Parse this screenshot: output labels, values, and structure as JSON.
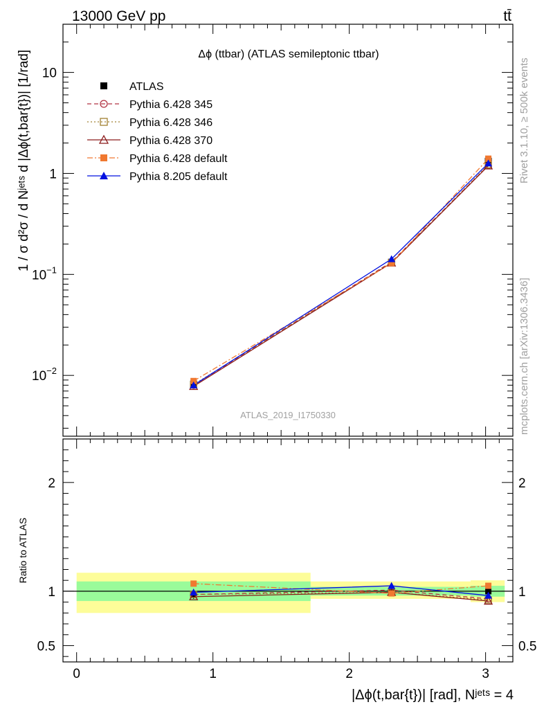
{
  "header": {
    "energy_label": "13000 GeV pp",
    "process_label": "tt̄"
  },
  "side_labels": {
    "rivet": "Rivet 3.1.10, ≥ 500k events",
    "mcplots": "mcplots.cern.ch [arXiv:1306.3436]"
  },
  "chart_data": [
    {
      "type": "line",
      "panel": "main",
      "title": "Δϕ (ttbar) (ATLAS semileptonic ttbar)",
      "analysis_label": "ATLAS_2019_I1750330",
      "ylabel": "1 / σ d²σ / d Nʲᵉᵗˢ d |Δϕ(t,bar{t})| [1/rad]",
      "yscale": "log",
      "xlim": [
        -0.1,
        3.2
      ],
      "ylim": [
        0.0025,
        30
      ],
      "ytick_labels": [
        {
          "value": 0.01,
          "base": "10",
          "exp": "−2"
        },
        {
          "value": 0.1,
          "base": "10",
          "exp": "−1"
        },
        {
          "value": 1,
          "base": "1",
          "exp": ""
        },
        {
          "value": 10,
          "base": "10",
          "exp": ""
        }
      ],
      "legend_position": "top-left",
      "x": [
        0.858,
        2.31,
        3.02
      ],
      "series": [
        {
          "name": "ATLAS",
          "color": "#000000",
          "values": [
            0.0082,
            0.132,
            1.32
          ],
          "errors": [
            0.0003,
            0.003,
            0.03
          ],
          "marker": "filled-square",
          "line": "none"
        },
        {
          "name": "Pythia 6.428 345",
          "color": "#b03040",
          "values": [
            0.008,
            0.133,
            1.2
          ],
          "marker": "open-circle",
          "line": "dashed"
        },
        {
          "name": "Pythia 6.428 346",
          "color": "#a08030",
          "values": [
            0.0081,
            0.131,
            1.22
          ],
          "marker": "open-square",
          "line": "dotted"
        },
        {
          "name": "Pythia 6.428 370",
          "color": "#8b1a1a",
          "values": [
            0.0078,
            0.13,
            1.19
          ],
          "marker": "open-triangle",
          "line": "solid"
        },
        {
          "name": "Pythia 6.428 default",
          "color": "#f07830",
          "values": [
            0.0088,
            0.129,
            1.4
          ],
          "marker": "filled-square",
          "line": "dashdot"
        },
        {
          "name": "Pythia 8.205 default",
          "color": "#0010e0",
          "values": [
            0.008,
            0.142,
            1.26
          ],
          "marker": "filled-triangle",
          "line": "solid"
        }
      ]
    },
    {
      "type": "line",
      "panel": "ratio",
      "ylabel": "Ratio to ATLAS",
      "xlabel": "|Δϕ(t,bar{t})| [rad], Nʲᵉᵗˢ = 4",
      "xlim": [
        -0.1,
        3.2
      ],
      "ylim": [
        0.35,
        2.4
      ],
      "xtick_labels": [
        "0",
        "1",
        "2",
        "3"
      ],
      "ytick_labels": [
        "0.5",
        "1",
        "2"
      ],
      "bands": [
        {
          "x": [
            0,
            1.716
          ],
          "inner": [
            0.91,
            1.09
          ],
          "outer": [
            0.8,
            1.17
          ]
        },
        {
          "x": [
            1.716,
            2.89
          ],
          "inner": [
            0.96,
            1.04
          ],
          "outer": [
            0.93,
            1.09
          ]
        },
        {
          "x": [
            2.89,
            3.14
          ],
          "inner": [
            0.95,
            1.05
          ],
          "outer": [
            0.9,
            1.1
          ]
        }
      ],
      "x": [
        0.858,
        2.31,
        3.02
      ],
      "series": [
        {
          "name": "ATLAS",
          "values": [
            0.97,
            1.0,
            1.0
          ],
          "errors": [
            0.04,
            0.02,
            0.02
          ]
        },
        {
          "name": "Pythia 6.428 345",
          "values": [
            0.97,
            1.01,
            0.93
          ]
        },
        {
          "name": "Pythia 6.428 346",
          "values": [
            0.97,
            0.99,
            0.92
          ]
        },
        {
          "name": "Pythia 6.428 370",
          "values": [
            0.95,
            0.99,
            0.91
          ]
        },
        {
          "name": "Pythia 6.428 default",
          "values": [
            1.07,
            0.98,
            1.05
          ]
        },
        {
          "name": "Pythia 8.205 default",
          "values": [
            0.99,
            1.05,
            0.96
          ]
        }
      ]
    }
  ]
}
